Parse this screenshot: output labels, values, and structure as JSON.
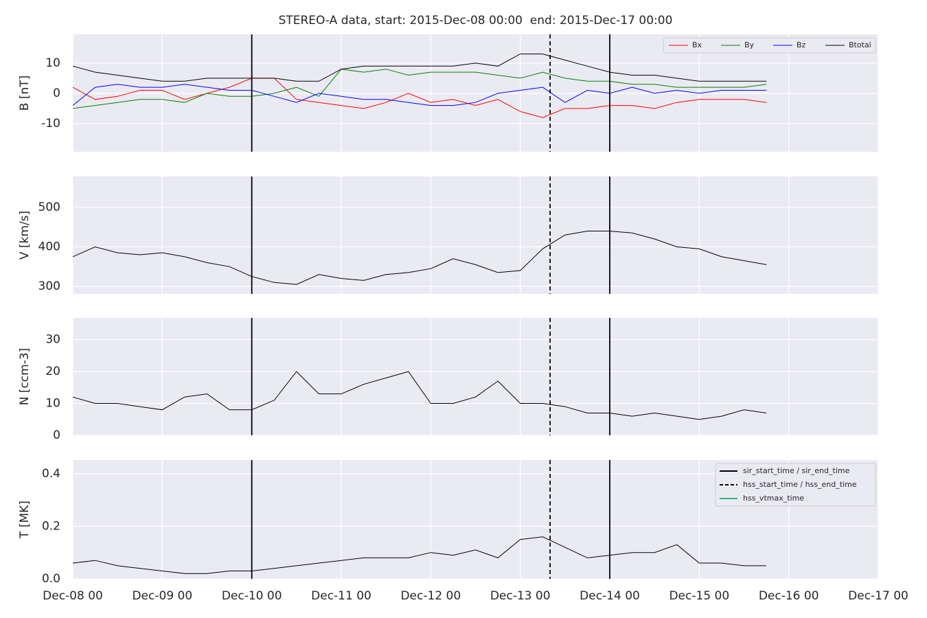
{
  "events": [
    {
      "label": "sir_start_time / sir_end_time",
      "color": "#000000",
      "dash": false,
      "times": [
        "2015-12-10T00:00",
        "2015-12-14T00:00"
      ]
    },
    {
      "label": "hss_start_time / hss_end_time",
      "color": "#000000",
      "dash": true,
      "times": [
        "2015-12-13T08:00"
      ]
    },
    {
      "label": "hss_vtmax_time",
      "color": "#3cb371",
      "dash": false,
      "times": []
    }
  ],
  "chart_data": [
    {
      "type": "line",
      "title": "STEREO-A data, start: 2015-Dec-08 00:00  end: 2015-Dec-17 00:00",
      "ylabel": "B [nT]",
      "legend": "upper right",
      "legend_layout": "row",
      "ylim": [
        -19.3,
        19.5
      ],
      "yticks": [
        -10,
        0,
        10
      ],
      "grid": true,
      "x": [
        "2015-12-08T00:00",
        "2015-12-08T06:00",
        "2015-12-08T12:00",
        "2015-12-08T18:00",
        "2015-12-09T00:00",
        "2015-12-09T06:00",
        "2015-12-09T12:00",
        "2015-12-09T18:00",
        "2015-12-10T00:00",
        "2015-12-10T06:00",
        "2015-12-10T12:00",
        "2015-12-10T18:00",
        "2015-12-11T00:00",
        "2015-12-11T06:00",
        "2015-12-11T12:00",
        "2015-12-11T18:00",
        "2015-12-12T00:00",
        "2015-12-12T06:00",
        "2015-12-12T12:00",
        "2015-12-12T18:00",
        "2015-12-13T00:00",
        "2015-12-13T06:00",
        "2015-12-13T12:00",
        "2015-12-13T18:00",
        "2015-12-14T00:00",
        "2015-12-14T06:00",
        "2015-12-14T12:00",
        "2015-12-14T18:00",
        "2015-12-15T00:00",
        "2015-12-15T06:00",
        "2015-12-15T12:00",
        "2015-12-15T18:00"
      ],
      "series": [
        {
          "name": "Bx",
          "color": "#ff0000",
          "values": [
            2,
            -2,
            -1,
            1,
            1,
            -2,
            0,
            2,
            5,
            5,
            -2,
            -3,
            -4,
            -5,
            -3,
            0,
            -3,
            -2,
            -4,
            -2,
            -6,
            -8,
            -5,
            -5,
            -4,
            -4,
            -5,
            -3,
            -2,
            -2,
            -2,
            -3
          ]
        },
        {
          "name": "By",
          "color": "#008000",
          "values": [
            -5,
            -4,
            -3,
            -2,
            -2,
            -3,
            0,
            -1,
            -1,
            0,
            2,
            -1,
            8,
            7,
            8,
            6,
            7,
            7,
            7,
            6,
            5,
            7,
            5,
            4,
            4,
            3,
            3,
            2,
            2,
            2,
            2,
            3
          ]
        },
        {
          "name": "Bz",
          "color": "#0000ff",
          "values": [
            -4,
            2,
            3,
            2,
            2,
            3,
            2,
            1,
            1,
            -1,
            -3,
            0,
            -1,
            -2,
            -2,
            -3,
            -4,
            -4,
            -3,
            0,
            1,
            2,
            -3,
            1,
            0,
            2,
            0,
            1,
            0,
            1,
            1,
            1
          ]
        },
        {
          "name": "Btotal",
          "color": "#000000",
          "values": [
            9,
            7,
            6,
            5,
            4,
            4,
            5,
            5,
            5,
            5,
            4,
            4,
            8,
            9,
            9,
            9,
            9,
            9,
            10,
            9,
            13,
            13,
            11,
            9,
            7,
            6,
            6,
            5,
            4,
            4,
            4,
            4
          ]
        }
      ]
    },
    {
      "type": "line",
      "ylabel": "V [km/s]",
      "ylim": [
        281,
        578
      ],
      "yticks": [
        300,
        400,
        500
      ],
      "grid": true,
      "x": [
        "2015-12-08T00:00",
        "2015-12-08T06:00",
        "2015-12-08T12:00",
        "2015-12-08T18:00",
        "2015-12-09T00:00",
        "2015-12-09T06:00",
        "2015-12-09T12:00",
        "2015-12-09T18:00",
        "2015-12-10T00:00",
        "2015-12-10T06:00",
        "2015-12-10T12:00",
        "2015-12-10T18:00",
        "2015-12-11T00:00",
        "2015-12-11T06:00",
        "2015-12-11T12:00",
        "2015-12-11T18:00",
        "2015-12-12T00:00",
        "2015-12-12T06:00",
        "2015-12-12T12:00",
        "2015-12-12T18:00",
        "2015-12-13T00:00",
        "2015-12-13T06:00",
        "2015-12-13T12:00",
        "2015-12-13T18:00",
        "2015-12-14T00:00",
        "2015-12-14T06:00",
        "2015-12-14T12:00",
        "2015-12-14T18:00",
        "2015-12-15T00:00",
        "2015-12-15T06:00",
        "2015-12-15T12:00",
        "2015-12-15T18:00"
      ],
      "series": [
        {
          "color": "#000000",
          "values": [
            375,
            400,
            385,
            380,
            385,
            375,
            360,
            350,
            325,
            310,
            305,
            330,
            320,
            315,
            330,
            335,
            345,
            370,
            355,
            335,
            340,
            395,
            430,
            440,
            440,
            435,
            420,
            400,
            395,
            375,
            365,
            355
          ]
        }
      ]
    },
    {
      "type": "line",
      "ylabel": "N [ccm-3]",
      "ylim": [
        0,
        36.8
      ],
      "yticks": [
        0,
        10,
        20,
        30
      ],
      "grid": true,
      "x": [
        "2015-12-08T00:00",
        "2015-12-08T06:00",
        "2015-12-08T12:00",
        "2015-12-08T18:00",
        "2015-12-09T00:00",
        "2015-12-09T06:00",
        "2015-12-09T12:00",
        "2015-12-09T18:00",
        "2015-12-10T00:00",
        "2015-12-10T06:00",
        "2015-12-10T12:00",
        "2015-12-10T18:00",
        "2015-12-11T00:00",
        "2015-12-11T06:00",
        "2015-12-11T12:00",
        "2015-12-11T18:00",
        "2015-12-12T00:00",
        "2015-12-12T06:00",
        "2015-12-12T12:00",
        "2015-12-12T18:00",
        "2015-12-13T00:00",
        "2015-12-13T06:00",
        "2015-12-13T12:00",
        "2015-12-13T18:00",
        "2015-12-14T00:00",
        "2015-12-14T06:00",
        "2015-12-14T12:00",
        "2015-12-14T18:00",
        "2015-12-15T00:00",
        "2015-12-15T06:00",
        "2015-12-15T12:00",
        "2015-12-15T18:00"
      ],
      "series": [
        {
          "color": "#000000",
          "values": [
            12,
            10,
            10,
            9,
            8,
            12,
            13,
            8,
            8,
            11,
            20,
            13,
            13,
            16,
            18,
            20,
            10,
            10,
            12,
            17,
            10,
            10,
            9,
            7,
            7,
            6,
            7,
            6,
            5,
            6,
            8,
            7
          ]
        }
      ]
    },
    {
      "type": "line",
      "ylabel": "T [MK]",
      "legend": "upper right",
      "legend_layout": "column",
      "ylim": [
        0,
        0.452
      ],
      "yticks": [
        {
          "value": 0,
          "label": "0.0"
        },
        0.2,
        0.4
      ],
      "grid": true,
      "xlim": [
        "2015-12-08T00:00",
        "2015-12-17T00:00"
      ],
      "xticks": [
        {
          "value": "2015-12-08T00:00",
          "label": "Dec-08 00"
        },
        {
          "value": "2015-12-09T00:00",
          "label": "Dec-09 00"
        },
        {
          "value": "2015-12-10T00:00",
          "label": "Dec-10 00"
        },
        {
          "value": "2015-12-11T00:00",
          "label": "Dec-11 00"
        },
        {
          "value": "2015-12-12T00:00",
          "label": "Dec-12 00"
        },
        {
          "value": "2015-12-13T00:00",
          "label": "Dec-13 00"
        },
        {
          "value": "2015-12-14T00:00",
          "label": "Dec-14 00"
        },
        {
          "value": "2015-12-15T00:00",
          "label": "Dec-15 00"
        },
        {
          "value": "2015-12-16T00:00",
          "label": "Dec-16 00"
        },
        {
          "value": "2015-12-17T00:00",
          "label": "Dec-17 00"
        }
      ],
      "x": [
        "2015-12-08T00:00",
        "2015-12-08T06:00",
        "2015-12-08T12:00",
        "2015-12-08T18:00",
        "2015-12-09T00:00",
        "2015-12-09T06:00",
        "2015-12-09T12:00",
        "2015-12-09T18:00",
        "2015-12-10T00:00",
        "2015-12-10T06:00",
        "2015-12-10T12:00",
        "2015-12-10T18:00",
        "2015-12-11T00:00",
        "2015-12-11T06:00",
        "2015-12-11T12:00",
        "2015-12-11T18:00",
        "2015-12-12T00:00",
        "2015-12-12T06:00",
        "2015-12-12T12:00",
        "2015-12-12T18:00",
        "2015-12-13T00:00",
        "2015-12-13T06:00",
        "2015-12-13T12:00",
        "2015-12-13T18:00",
        "2015-12-14T00:00",
        "2015-12-14T06:00",
        "2015-12-14T12:00",
        "2015-12-14T18:00",
        "2015-12-15T00:00",
        "2015-12-15T06:00",
        "2015-12-15T12:00",
        "2015-12-15T18:00"
      ],
      "series": [
        {
          "color": "#000000",
          "values": [
            0.06,
            0.07,
            0.05,
            0.04,
            0.03,
            0.02,
            0.02,
            0.03,
            0.03,
            0.04,
            0.05,
            0.06,
            0.07,
            0.08,
            0.08,
            0.08,
            0.1,
            0.09,
            0.11,
            0.08,
            0.15,
            0.16,
            0.12,
            0.08,
            0.09,
            0.1,
            0.1,
            0.13,
            0.06,
            0.06,
            0.05,
            0.05
          ]
        }
      ]
    }
  ]
}
